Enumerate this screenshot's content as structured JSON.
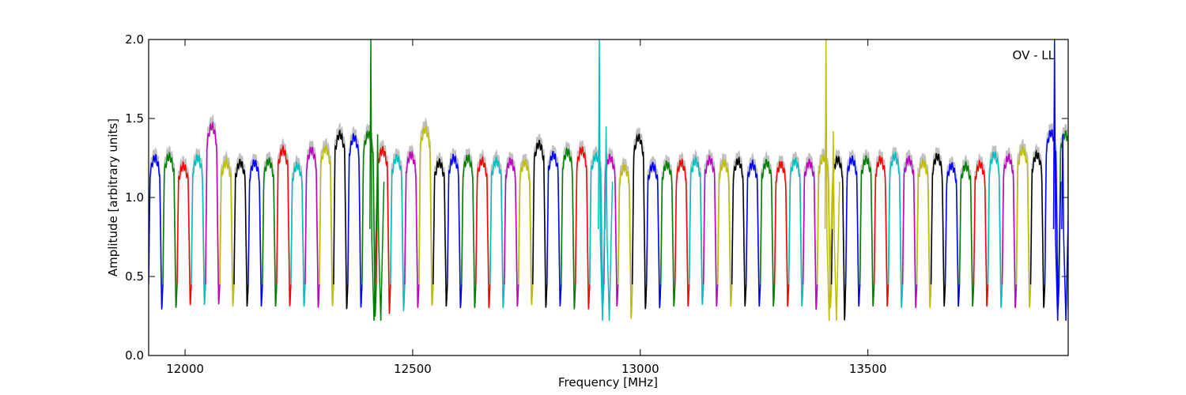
{
  "chart_data": {
    "type": "line",
    "title": "",
    "xlabel": "Frequency [MHz]",
    "ylabel": "Amplitude [arbitrary units]",
    "annotation": "OV - LL",
    "annotation_placement": "top-right",
    "xlim": [
      11920,
      13940
    ],
    "ylim": [
      0.0,
      2.0
    ],
    "xticks": [
      12000,
      12500,
      13000,
      13500
    ],
    "yticks": [
      0.0,
      0.5,
      1.0,
      1.5,
      2.0
    ],
    "xtick_labels": [
      "12000",
      "12500",
      "13000",
      "13500"
    ],
    "ytick_labels": [
      "0.0",
      "0.5",
      "1.0",
      "1.5",
      "2.0"
    ],
    "grid": false,
    "legend": "none",
    "channel_spacing_mhz": 31.25,
    "background_trace_color": "#c0c0c0",
    "series_colors": [
      "#0000ff",
      "#008000",
      "#ff0000",
      "#00bfbf",
      "#bf00bf",
      "#bfbf00",
      "#000000"
    ],
    "notch_minima": [
      0.27,
      0.28,
      0.3,
      0.3,
      0.3,
      0.29,
      0.29,
      0.29,
      0.29,
      0.29,
      0.29,
      0.28,
      0.29,
      0.27,
      0.28,
      0.22,
      0.24,
      0.26,
      0.28,
      0.29,
      0.29,
      0.28,
      0.28,
      0.28,
      0.28,
      0.29,
      0.3,
      0.28,
      0.29,
      0.27,
      0.27,
      0.28,
      0.29,
      0.21,
      0.27,
      0.28,
      0.29,
      0.29,
      0.3,
      0.29,
      0.29,
      0.29,
      0.29,
      0.29,
      0.29,
      0.29,
      0.27,
      0.28,
      0.2,
      0.29,
      0.29,
      0.29,
      0.28,
      0.28,
      0.28,
      0.29,
      0.29,
      0.29,
      0.29,
      0.28,
      0.28,
      0.28,
      0.28,
      0.28,
      0.27
    ],
    "plateau_levels": [
      1.25,
      1.26,
      1.2,
      1.25,
      1.45,
      1.22,
      1.22,
      1.22,
      1.23,
      1.3,
      1.2,
      1.3,
      1.31,
      1.4,
      1.38,
      1.4,
      1.3,
      1.25,
      1.27,
      1.43,
      1.22,
      1.25,
      1.25,
      1.23,
      1.23,
      1.23,
      1.22,
      1.34,
      1.27,
      1.29,
      1.3,
      1.26,
      1.25,
      1.19,
      1.38,
      1.2,
      1.21,
      1.22,
      1.23,
      1.24,
      1.22,
      1.23,
      1.21,
      1.22,
      1.21,
      1.23,
      1.22,
      1.25,
      1.24,
      1.24,
      1.24,
      1.24,
      1.26,
      1.24,
      1.22,
      1.26,
      1.2,
      1.2,
      1.21,
      1.27,
      1.25,
      1.3,
      1.27,
      1.41,
      1.4
    ],
    "spikes": [
      {
        "x": 12408,
        "y": 2.0,
        "color": "#008000"
      },
      {
        "x": 12423,
        "y": 1.4,
        "color": "#008000"
      },
      {
        "x": 12910,
        "y": 2.0,
        "color": "#00bfbf"
      },
      {
        "x": 12925,
        "y": 1.45,
        "color": "#00bfbf"
      },
      {
        "x": 13408,
        "y": 2.0,
        "color": "#bfbf00"
      },
      {
        "x": 13424,
        "y": 1.42,
        "color": "#bfbf00"
      },
      {
        "x": 13910,
        "y": 2.0,
        "color": "#0000ff"
      },
      {
        "x": 13928,
        "y": 1.4,
        "color": "#0000ff"
      }
    ]
  }
}
